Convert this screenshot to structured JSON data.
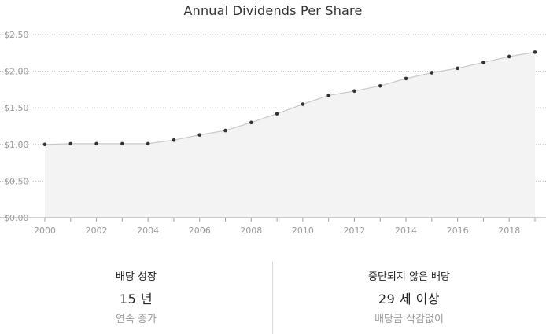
{
  "chart_data": {
    "type": "area",
    "title": "Annual Dividends Per Share",
    "x": [
      2000,
      2001,
      2002,
      2003,
      2004,
      2005,
      2006,
      2007,
      2008,
      2009,
      2010,
      2011,
      2012,
      2013,
      2014,
      2015,
      2016,
      2017,
      2018,
      2019
    ],
    "series": [
      {
        "values": [
          1.0,
          1.01,
          1.01,
          1.01,
          1.01,
          1.06,
          1.13,
          1.19,
          1.3,
          1.42,
          1.55,
          1.67,
          1.73,
          1.8,
          1.9,
          1.98,
          2.04,
          2.12,
          2.2,
          2.26
        ]
      }
    ],
    "ylim": [
      0,
      2.5
    ],
    "yticks": [
      0,
      0.5,
      1.0,
      1.5,
      2.0,
      2.5
    ],
    "ytick_labels": [
      "$0.00",
      "$0.50",
      "$1.00",
      "$1.50",
      "$2.00",
      "$2.50"
    ],
    "xticks": [
      2000,
      2002,
      2004,
      2006,
      2008,
      2010,
      2012,
      2014,
      2016,
      2018
    ],
    "xtick_labels": [
      "2000",
      "2002",
      "2004",
      "2006",
      "2008",
      "2010",
      "2012",
      "2014",
      "2016",
      "2018"
    ],
    "xlim": [
      2000,
      2019
    ],
    "grid": true,
    "colors": {
      "line": "#c8c8c8",
      "fill": "#f3f3f3",
      "marker": "#333333",
      "grid": "#bdbdbd"
    }
  },
  "stats": {
    "growth": {
      "title": "배당 성장",
      "value": "15 년",
      "sub": "연속 증가"
    },
    "uninterrupted": {
      "title": "중단되지 않은 배당",
      "value": "29 세 이상",
      "sub": "배당금 삭감없이"
    }
  }
}
